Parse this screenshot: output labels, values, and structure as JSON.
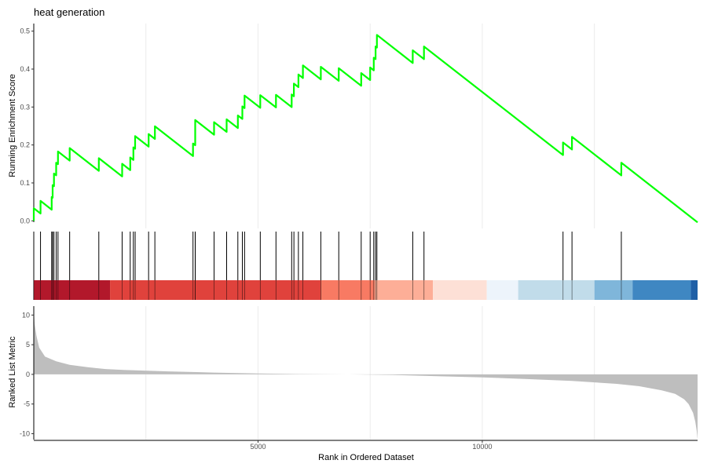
{
  "chart_data": {
    "type": "line",
    "title": "heat generation",
    "xlabel": "Rank in Ordered Dataset",
    "xlim": [
      0,
      14800
    ],
    "x_ticks": [
      5000,
      10000
    ],
    "colors": {
      "es_line": "#00ff00",
      "ranked_fill": "#bebebe",
      "hits": "#000000",
      "grid": "#ebebeb"
    },
    "es_panel": {
      "ylabel": "Running Enrichment Score",
      "ylim": [
        -0.02,
        0.52
      ],
      "y_ticks": [
        0.0,
        0.1,
        0.2,
        0.3,
        0.4,
        0.5
      ],
      "hits": [
        0,
        150,
        400,
        420,
        450,
        500,
        540,
        800,
        1450,
        1970,
        2150,
        2220,
        2260,
        2560,
        2700,
        3550,
        3600,
        3600,
        4020,
        4300,
        4550,
        4650,
        4700,
        5050,
        5400,
        5750,
        5800,
        5900,
        6000,
        6400,
        6800,
        7300,
        7500,
        7580,
        7620,
        7650,
        8450,
        8700,
        11800,
        12000,
        13100
      ],
      "es_max": 0.49,
      "es_min": -0.01
    },
    "ranking_bar": {
      "segments": [
        {
          "x0": 0,
          "x1": 1700,
          "color": "#b2182b"
        },
        {
          "x0": 1700,
          "x1": 6400,
          "color": "#e0423c"
        },
        {
          "x0": 6400,
          "x1": 7600,
          "color": "#f87a63"
        },
        {
          "x0": 7600,
          "x1": 8900,
          "color": "#fdae97"
        },
        {
          "x0": 8900,
          "x1": 10100,
          "color": "#fde0d6"
        },
        {
          "x0": 10100,
          "x1": 10800,
          "color": "#edf4fb"
        },
        {
          "x0": 10800,
          "x1": 12500,
          "color": "#c1dcea"
        },
        {
          "x0": 12500,
          "x1": 13350,
          "color": "#7fb6da"
        },
        {
          "x0": 13350,
          "x1": 14650,
          "color": "#3f87c2"
        },
        {
          "x0": 14650,
          "x1": 14800,
          "color": "#1f5fa6"
        }
      ]
    },
    "metric_panel": {
      "ylabel": "Ranked List Metric",
      "ylim": [
        -11,
        11.5
      ],
      "y_ticks": [
        10,
        5,
        0,
        -5,
        -10
      ],
      "x": [
        0,
        20,
        60,
        120,
        250,
        500,
        800,
        1200,
        1600,
        2000,
        3000,
        4000,
        5000,
        6000,
        7000,
        7500,
        8000,
        9000,
        10000,
        11000,
        12000,
        13000,
        13500,
        14000,
        14300,
        14500,
        14600,
        14700,
        14750,
        14780,
        14800
      ],
      "values": [
        11,
        8.5,
        6.5,
        4.5,
        3.0,
        2.2,
        1.6,
        1.2,
        0.9,
        0.75,
        0.5,
        0.3,
        0.15,
        0.05,
        0,
        -0.05,
        -0.1,
        -0.3,
        -0.5,
        -0.8,
        -1.1,
        -1.6,
        -2.0,
        -2.7,
        -3.3,
        -4.2,
        -5.0,
        -6.5,
        -8.0,
        -9.5,
        -11
      ]
    }
  }
}
